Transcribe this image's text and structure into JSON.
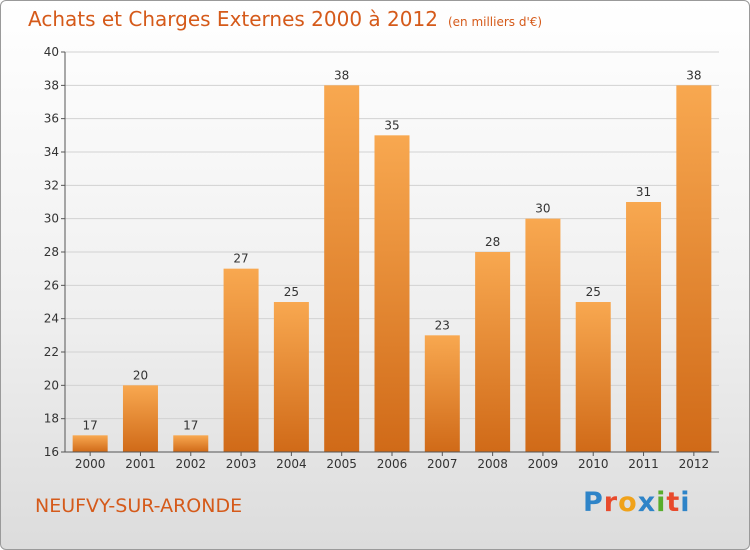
{
  "title": "Achats et Charges Externes 2000 à 2012",
  "unit_label": "(en milliers d'€)",
  "commune": "NEUFVY-SUR-ARONDE",
  "logo": {
    "letters": [
      "P",
      "r",
      "o",
      "x",
      "i",
      "t",
      "i"
    ]
  },
  "colors": {
    "bar_top": "#f8a850",
    "bar_bottom": "#d06a18",
    "title": "#d55a1a"
  },
  "chart_data": {
    "type": "bar",
    "title": "Achats et Charges Externes 2000 à 2012",
    "xlabel": "",
    "ylabel": "",
    "categories": [
      "2000",
      "2001",
      "2002",
      "2003",
      "2004",
      "2005",
      "2006",
      "2007",
      "2008",
      "2009",
      "2010",
      "2011",
      "2012"
    ],
    "values": [
      17,
      20,
      17,
      27,
      25,
      38,
      35,
      23,
      28,
      30,
      25,
      31,
      38
    ],
    "ylim": [
      16,
      40
    ],
    "yticks": [
      16,
      18,
      20,
      22,
      24,
      26,
      28,
      30,
      32,
      34,
      36,
      38,
      40
    ],
    "grid": true,
    "legend": "none"
  }
}
